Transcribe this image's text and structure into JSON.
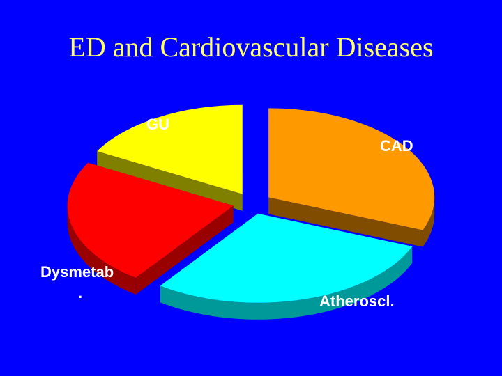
{
  "slide": {
    "title": "ED and Cardiovascular Diseases"
  },
  "chart_data": {
    "type": "pie",
    "title": "",
    "categories": [
      "CAD",
      "Atheroscl.",
      "Dysmetab.",
      "GU"
    ],
    "values": [
      31,
      29,
      23,
      17
    ],
    "colors": [
      "#ff9900",
      "#00ffff",
      "#ff0000",
      "#ffff00"
    ],
    "side_colors": [
      "#804d00",
      "#009999",
      "#990000",
      "#808000"
    ],
    "exploded": true,
    "three_d": true,
    "legend": "none",
    "labels": {
      "CAD": "CAD",
      "Atheroscl.": "Atheroscl.",
      "Dysmetab_line1": "Dysmetab",
      "Dysmetab_line2": ".",
      "GU": "GU"
    }
  }
}
